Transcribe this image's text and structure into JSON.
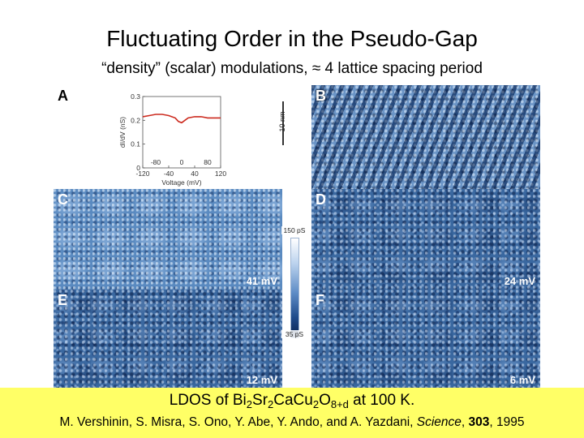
{
  "slide": {
    "title": "Fluctuating Order in the Pseudo-Gap",
    "subtitle": "“density” (scalar) modulations, ≈ 4 lattice spacing period"
  },
  "figure": {
    "panels": [
      {
        "letter": "A"
      },
      {
        "letter": "B",
        "scale": "10 nm"
      },
      {
        "letter": "C",
        "energy": "41 mV"
      },
      {
        "letter": "D",
        "energy": "24 mV"
      },
      {
        "letter": "E",
        "energy": "12 mV"
      },
      {
        "letter": "F",
        "energy": "6 mV"
      }
    ],
    "colorbar": {
      "top_label": "150 pS",
      "bottom_label": "35 pS"
    },
    "inset_plot": {
      "ylabel": "dI/dV (nS)",
      "xlabel": "Voltage (mV)",
      "y_ticks": [
        "0.3",
        "0.2",
        "0.1",
        "0"
      ],
      "x_ticks_bottom": [
        "-120",
        "-40",
        "40",
        "120"
      ],
      "x_ticks_inner": [
        "-80",
        "0",
        "80"
      ]
    }
  },
  "chart_data": {
    "type": "line",
    "xlabel": "Voltage (mV)",
    "ylabel": "dI/dV (nS)",
    "xlim": [
      -120,
      120
    ],
    "ylim": [
      0,
      0.3
    ],
    "x": [
      -120,
      -100,
      -80,
      -60,
      -40,
      -20,
      -10,
      0,
      10,
      20,
      40,
      60,
      80,
      100,
      120
    ],
    "series": [
      {
        "values": [
          0.215,
          0.22,
          0.225,
          0.225,
          0.22,
          0.21,
          0.195,
          0.19,
          0.2,
          0.21,
          0.215,
          0.215,
          0.21,
          0.21,
          0.21
        ]
      }
    ],
    "color": "#cc2a1e"
  },
  "caption": {
    "ldos": {
      "prefix": "LDOS of Bi",
      "s1": "2",
      "sr": "Sr",
      "s2": "2",
      "cacu": "CaCu",
      "s3": "2",
      "o": "O",
      "s4": "8+d",
      "suffix": " at 100 K."
    },
    "citation": {
      "authors": "M. Vershinin, S. Misra, S. Ono, Y. Abe, Y. Ando, and A. Yazdani, ",
      "journal": "Science",
      "sep1": ", ",
      "volume": "303",
      "sep2": ", ",
      "year": "1995"
    }
  }
}
